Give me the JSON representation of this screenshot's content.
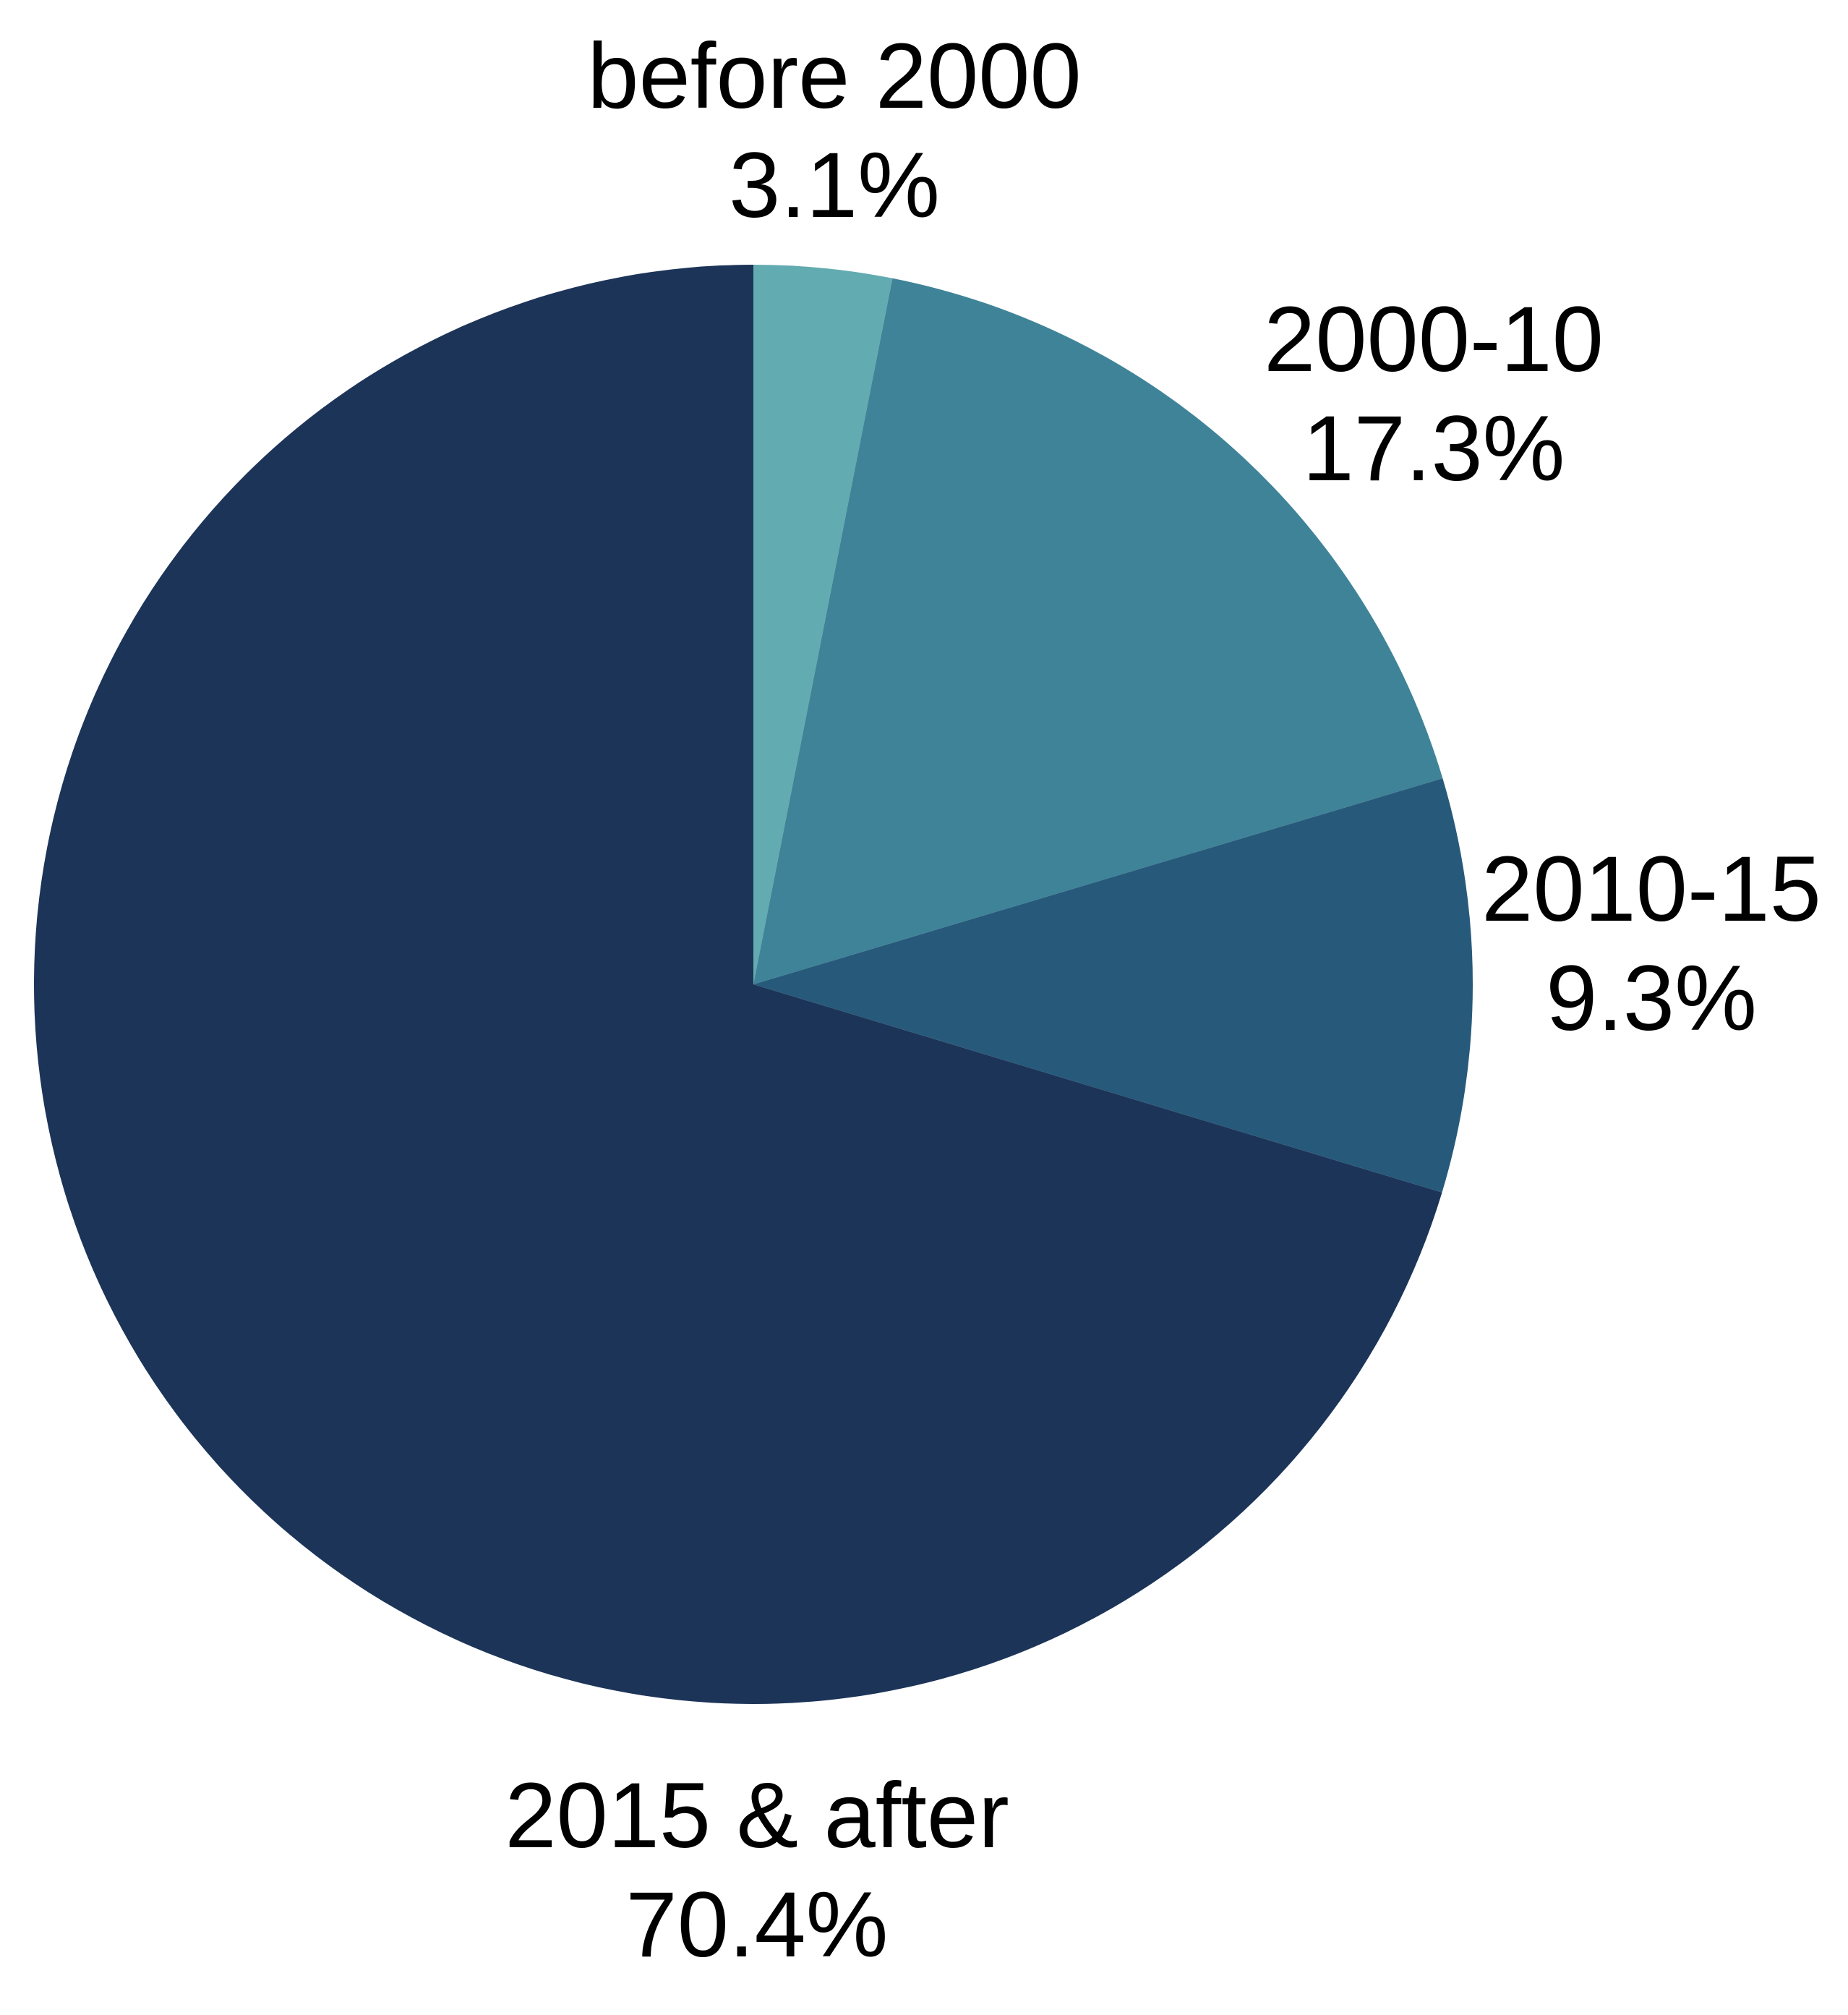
{
  "chart_data": {
    "type": "pie",
    "categories": [
      "before 2000",
      "2000-10",
      "2010-15",
      "2015 & after"
    ],
    "values": [
      3.1,
      17.3,
      9.3,
      70.4
    ],
    "value_labels": [
      "3.1%",
      "17.3%",
      "9.3%",
      "70.4%"
    ],
    "colors": [
      "#62abb0",
      "#3f8398",
      "#275a7a",
      "#1c3458"
    ]
  }
}
